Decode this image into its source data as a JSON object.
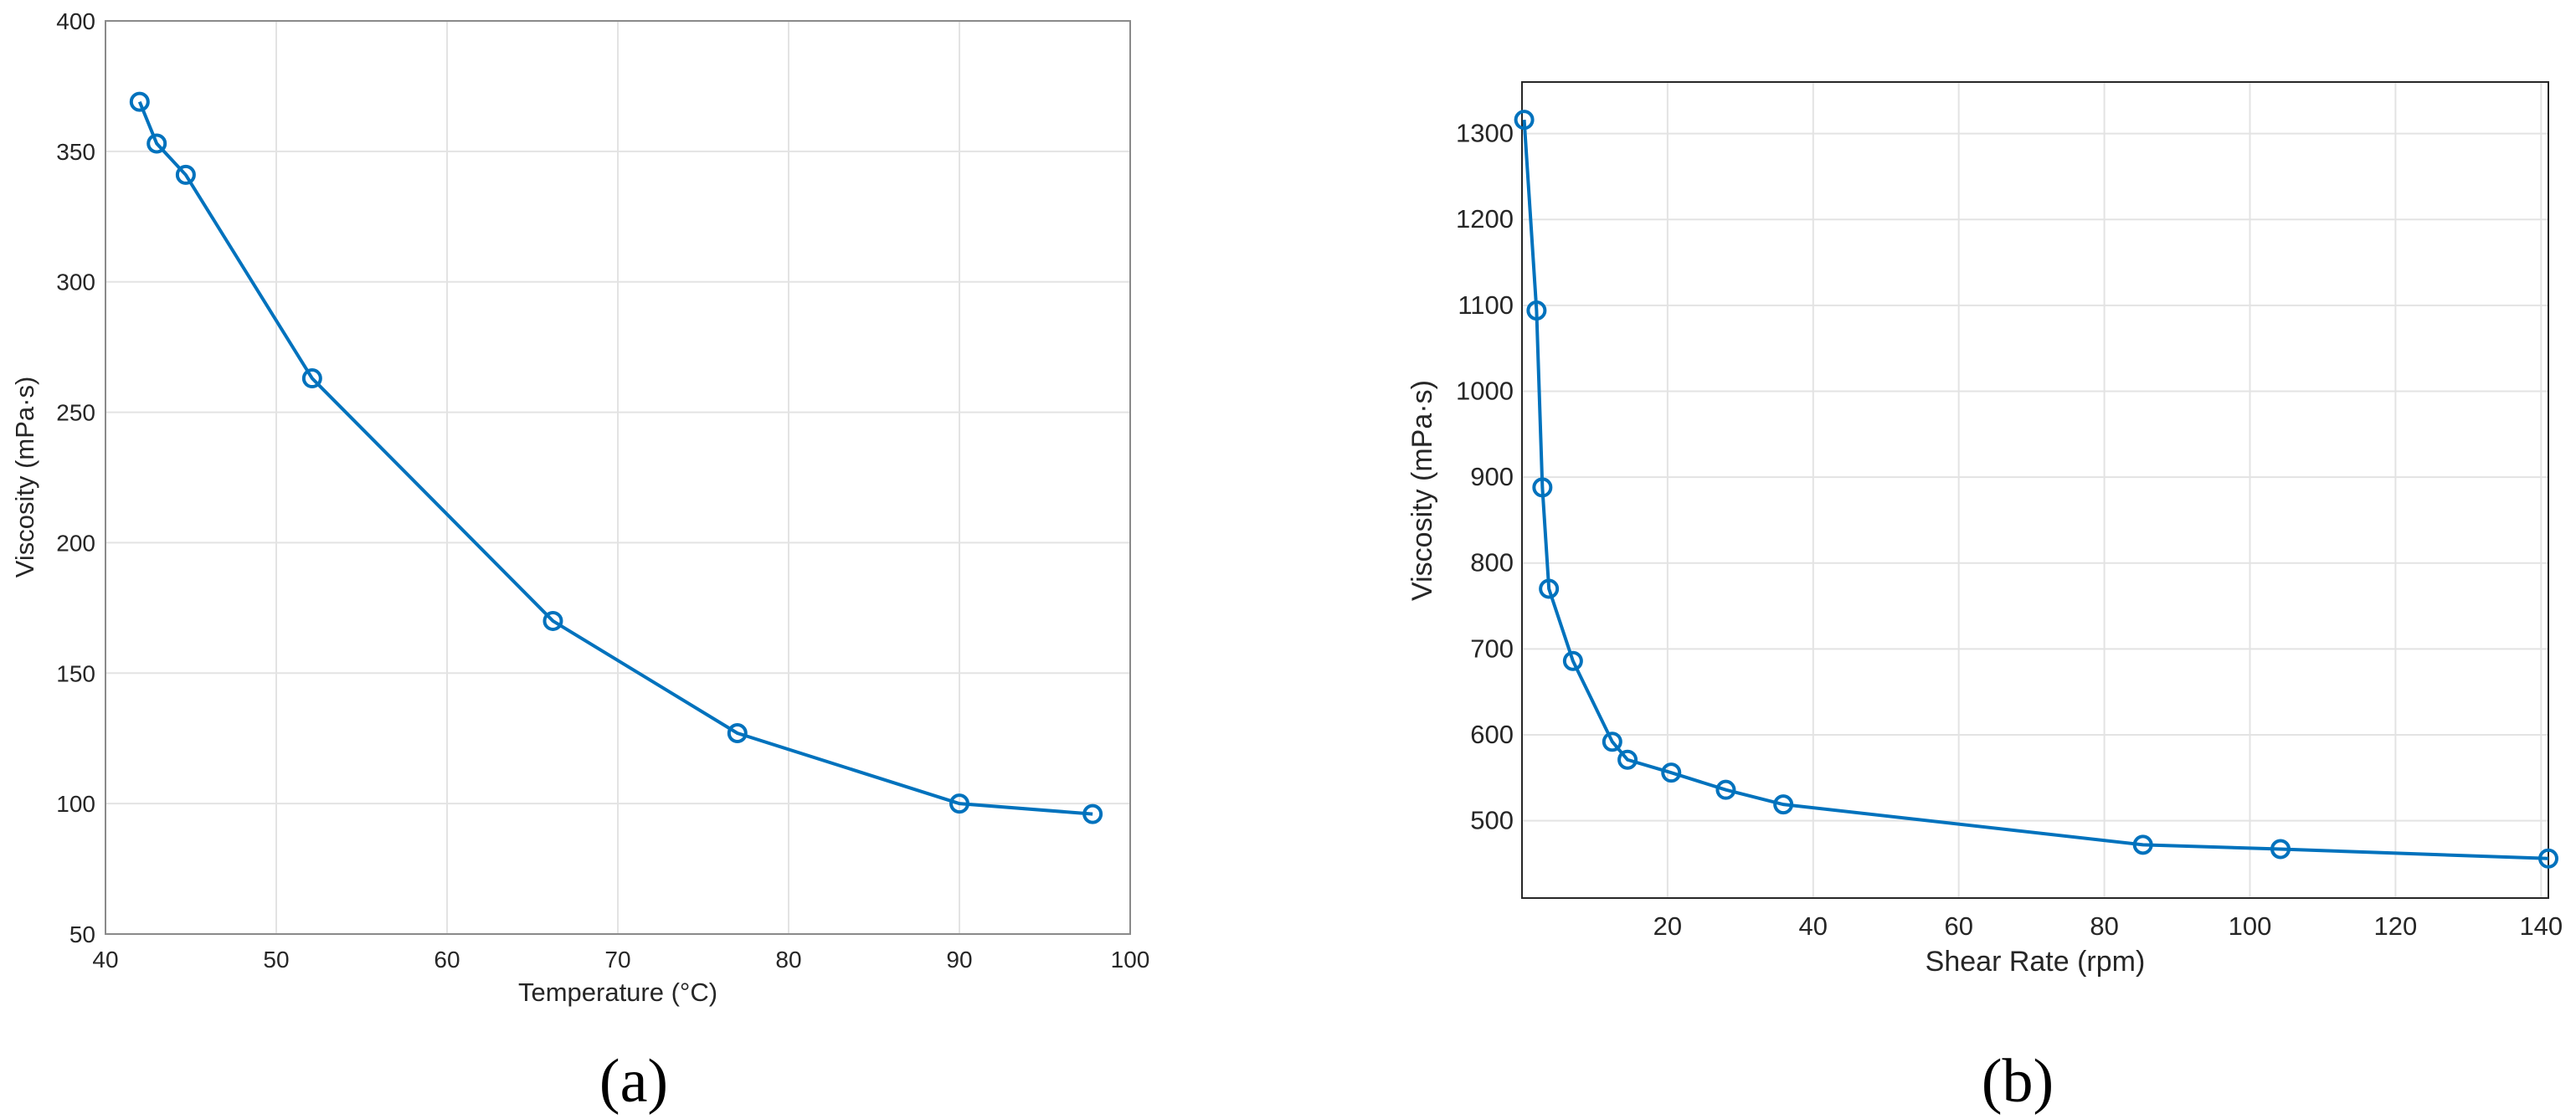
{
  "colors": {
    "series": "#0072BD"
  },
  "chart_data": [
    {
      "type": "line",
      "panel_label": "(a)",
      "title": "",
      "xlabel": "Temperature (°C)",
      "ylabel": "Viscosity (mPa·s)",
      "xlim": [
        40,
        100
      ],
      "ylim": [
        50,
        400
      ],
      "xticks": [
        40,
        50,
        60,
        70,
        80,
        90,
        100
      ],
      "yticks": [
        50,
        100,
        150,
        200,
        250,
        300,
        350,
        400
      ],
      "grid": true,
      "marker": "circle",
      "series": [
        {
          "x": [
            42.0,
            43.0,
            44.7,
            52.1,
            66.2,
            77.0,
            90.0,
            97.8
          ],
          "values": [
            369,
            353,
            341,
            263,
            170,
            127,
            100,
            96
          ]
        }
      ]
    },
    {
      "type": "line",
      "panel_label": "(b)",
      "title": "",
      "xlabel": "Shear Rate (rpm)",
      "ylabel": "Viscosity (mPa·s)",
      "xlim": [
        0,
        141
      ],
      "ylim": [
        410,
        1360
      ],
      "xticks": [
        20,
        40,
        60,
        80,
        100,
        120,
        140
      ],
      "yticks": [
        500,
        600,
        700,
        800,
        900,
        1000,
        1100,
        1200,
        1300
      ],
      "grid": true,
      "marker": "circle",
      "series": [
        {
          "x": [
            0.3,
            2.0,
            2.8,
            3.7,
            7.0,
            12.4,
            14.5,
            20.5,
            28.0,
            35.9,
            85.3,
            104.2,
            141.0
          ],
          "values": [
            1316,
            1094,
            888,
            770,
            686,
            592,
            571,
            556,
            536,
            519,
            472,
            467,
            456
          ]
        }
      ]
    }
  ]
}
